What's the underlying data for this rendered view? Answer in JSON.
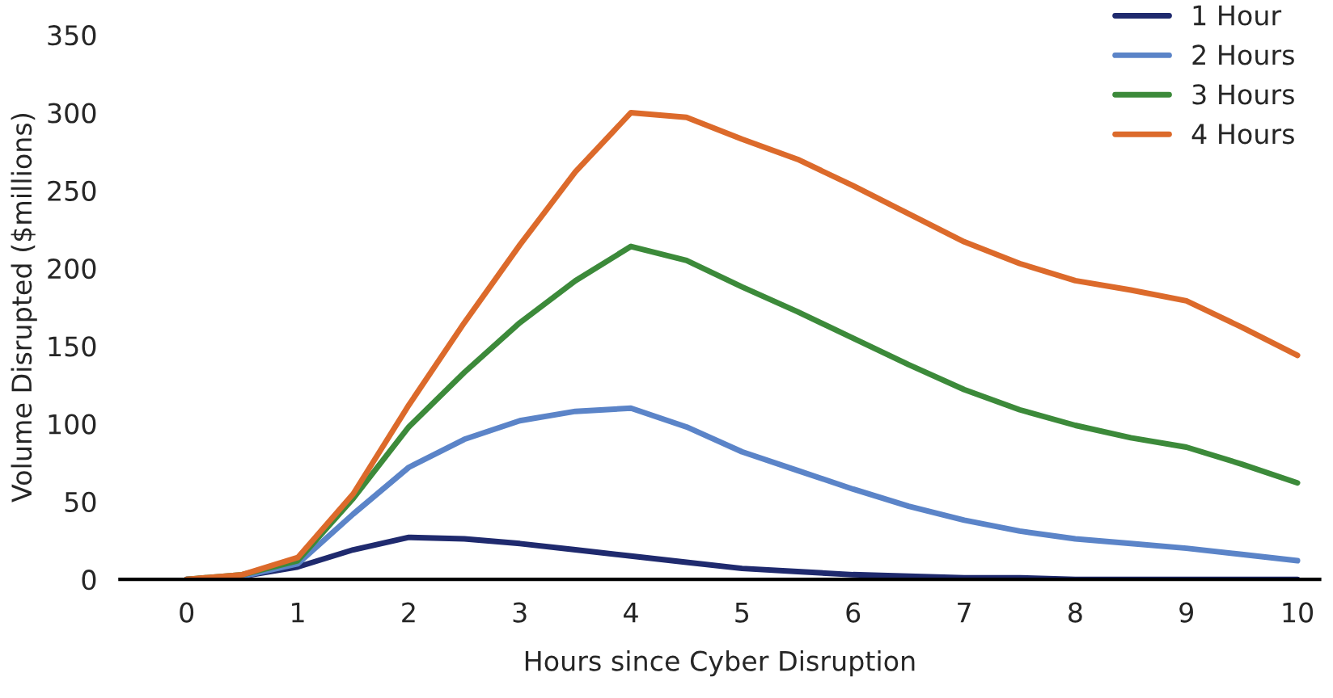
{
  "chart_data": {
    "type": "line",
    "xlabel": "Hours since Cyber Disruption",
    "ylabel": "Volume Disrupted ($millions)",
    "x": [
      0,
      0.5,
      1,
      1.5,
      2,
      2.5,
      3,
      3.5,
      4,
      4.5,
      5,
      5.5,
      6,
      6.5,
      7,
      7.5,
      8,
      8.5,
      9,
      9.5,
      10
    ],
    "series": [
      {
        "name": "1 Hour",
        "color": "#1f2a6e",
        "values": [
          0,
          2,
          8,
          19,
          27,
          26,
          23,
          19,
          15,
          11,
          7,
          5,
          3,
          2,
          1,
          1,
          0,
          0,
          0,
          0,
          0
        ]
      },
      {
        "name": "2 Hours",
        "color": "#5b84c8",
        "values": [
          0,
          2,
          10,
          42,
          72,
          90,
          102,
          108,
          110,
          98,
          82,
          70,
          58,
          47,
          38,
          31,
          26,
          23,
          20,
          16,
          12
        ]
      },
      {
        "name": "3 Hours",
        "color": "#3c8a3a",
        "values": [
          0,
          3,
          12,
          52,
          98,
          133,
          165,
          192,
          214,
          205,
          188,
          172,
          155,
          138,
          122,
          109,
          99,
          91,
          85,
          74,
          62
        ]
      },
      {
        "name": "4 Hours",
        "color": "#dc6a2b",
        "values": [
          0,
          3,
          14,
          55,
          112,
          165,
          215,
          262,
          300,
          297,
          283,
          270,
          253,
          235,
          217,
          203,
          192,
          186,
          179,
          162,
          144
        ]
      }
    ],
    "xlim": [
      -0.6,
      10.2
    ],
    "ylim": [
      0,
      350
    ],
    "xticks": [
      0,
      1,
      2,
      3,
      4,
      5,
      6,
      7,
      8,
      9,
      10
    ],
    "yticks": [
      0,
      50,
      100,
      150,
      200,
      250,
      300,
      350
    ],
    "legend": "top right",
    "grid": false,
    "marker": "none",
    "line_style": "solid"
  }
}
